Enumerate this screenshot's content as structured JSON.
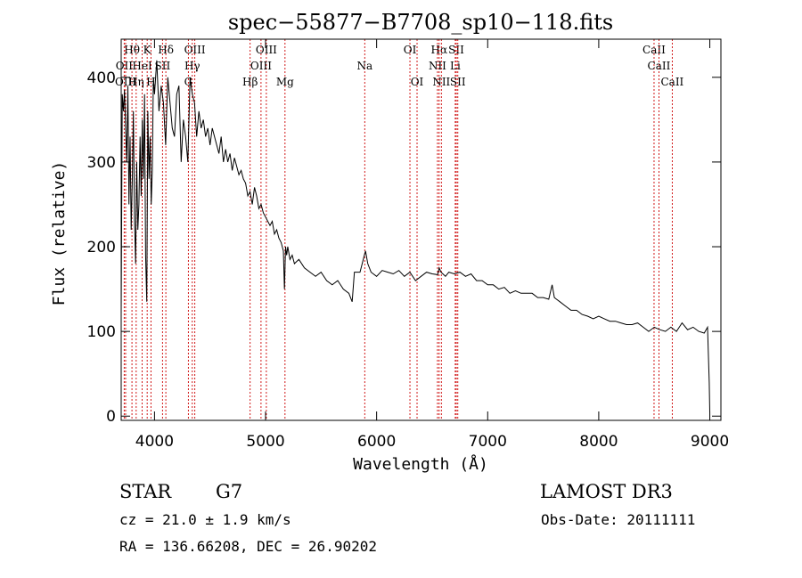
{
  "chart_data": {
    "type": "line",
    "title": "spec−55877−B7708_sp10−118.fits",
    "xlabel": "Wavelength (Å)",
    "ylabel": "Flux (relative)",
    "xlim": [
      3700,
      9100
    ],
    "ylim": [
      -5,
      445
    ],
    "xticks": [
      4000,
      5000,
      6000,
      7000,
      8000,
      9000
    ],
    "yticks": [
      0,
      100,
      200,
      300,
      400
    ],
    "series": [
      {
        "name": "flux",
        "x": [
          3700,
          3710,
          3720,
          3730,
          3740,
          3750,
          3760,
          3770,
          3780,
          3790,
          3800,
          3810,
          3820,
          3830,
          3840,
          3850,
          3860,
          3870,
          3880,
          3890,
          3900,
          3910,
          3920,
          3930,
          3940,
          3950,
          3960,
          3970,
          3980,
          3990,
          4000,
          4020,
          4040,
          4060,
          4080,
          4100,
          4120,
          4140,
          4160,
          4180,
          4200,
          4220,
          4240,
          4260,
          4280,
          4300,
          4320,
          4340,
          4360,
          4380,
          4400,
          4420,
          4440,
          4460,
          4480,
          4500,
          4520,
          4540,
          4560,
          4580,
          4600,
          4620,
          4640,
          4660,
          4680,
          4700,
          4720,
          4740,
          4760,
          4780,
          4800,
          4820,
          4840,
          4860,
          4880,
          4900,
          4920,
          4940,
          4960,
          4980,
          5000,
          5020,
          5040,
          5060,
          5080,
          5100,
          5120,
          5140,
          5160,
          5170,
          5180,
          5190,
          5200,
          5220,
          5240,
          5260,
          5300,
          5350,
          5400,
          5450,
          5500,
          5550,
          5600,
          5650,
          5700,
          5750,
          5780,
          5800,
          5850,
          5890,
          5900,
          5920,
          5950,
          6000,
          6050,
          6100,
          6150,
          6200,
          6250,
          6300,
          6350,
          6400,
          6450,
          6500,
          6550,
          6563,
          6580,
          6620,
          6650,
          6700,
          6750,
          6800,
          6850,
          6900,
          6950,
          7000,
          7050,
          7100,
          7150,
          7200,
          7250,
          7300,
          7350,
          7400,
          7450,
          7500,
          7550,
          7580,
          7600,
          7620,
          7650,
          7700,
          7750,
          7800,
          7850,
          7900,
          7950,
          8000,
          8050,
          8100,
          8150,
          8200,
          8250,
          8300,
          8350,
          8400,
          8450,
          8500,
          8550,
          8600,
          8650,
          8700,
          8750,
          8800,
          8850,
          8900,
          8950,
          8980,
          8995,
          9000
        ],
        "y": [
          120,
          380,
          360,
          385,
          340,
          300,
          390,
          250,
          330,
          220,
          280,
          360,
          230,
          180,
          300,
          220,
          250,
          330,
          260,
          350,
          280,
          380,
          190,
          135,
          360,
          280,
          330,
          250,
          290,
          400,
          380,
          420,
          360,
          390,
          370,
          320,
          400,
          370,
          340,
          330,
          380,
          390,
          300,
          350,
          330,
          300,
          400,
          380,
          370,
          330,
          360,
          340,
          350,
          330,
          340,
          320,
          340,
          330,
          320,
          310,
          330,
          300,
          315,
          300,
          310,
          290,
          305,
          295,
          285,
          290,
          280,
          275,
          260,
          265,
          250,
          270,
          260,
          245,
          250,
          240,
          235,
          230,
          225,
          230,
          215,
          220,
          210,
          205,
          195,
          150,
          200,
          190,
          200,
          185,
          190,
          180,
          185,
          175,
          170,
          165,
          170,
          160,
          155,
          160,
          150,
          145,
          135,
          170,
          170,
          190,
          195,
          180,
          170,
          165,
          172,
          170,
          168,
          172,
          165,
          170,
          160,
          165,
          170,
          168,
          167,
          175,
          170,
          165,
          170,
          168,
          170,
          165,
          168,
          160,
          160,
          155,
          155,
          150,
          152,
          145,
          148,
          145,
          145,
          145,
          140,
          140,
          138,
          155,
          140,
          138,
          135,
          130,
          125,
          125,
          120,
          118,
          115,
          118,
          115,
          112,
          112,
          110,
          108,
          108,
          110,
          105,
          100,
          105,
          102,
          100,
          105,
          100,
          110,
          102,
          105,
          100,
          98,
          105,
          40,
          5
        ]
      }
    ],
    "line_markers": [
      {
        "label": "Hθ",
        "x": 3797,
        "row": 1
      },
      {
        "label": "K",
        "x": 3934,
        "row": 1
      },
      {
        "label": "Hδ",
        "x": 4102,
        "row": 1
      },
      {
        "label": "OIII",
        "x": 4363,
        "row": 1
      },
      {
        "label": "OIII",
        "x": 5007,
        "row": 1
      },
      {
        "label": "OI",
        "x": 6300,
        "row": 1
      },
      {
        "label": "Hα",
        "x": 6563,
        "row": 1
      },
      {
        "label": "SII",
        "x": 6717,
        "row": 1
      },
      {
        "label": "CaII",
        "x": 8498,
        "row": 1
      },
      {
        "label": "OII",
        "x": 3727,
        "row": 2
      },
      {
        "label": "HeI",
        "x": 3889,
        "row": 2
      },
      {
        "label": "SII",
        "x": 4072,
        "row": 2
      },
      {
        "label": "Hγ",
        "x": 4340,
        "row": 2
      },
      {
        "label": "OIII",
        "x": 4959,
        "row": 2
      },
      {
        "label": "Na",
        "x": 5893,
        "row": 2
      },
      {
        "label": "NII",
        "x": 6548,
        "row": 2
      },
      {
        "label": "Li",
        "x": 6708,
        "row": 2
      },
      {
        "label": "CaII",
        "x": 8542,
        "row": 2
      },
      {
        "label": "OIII",
        "x": 3740,
        "row": 3
      },
      {
        "label": "Hη",
        "x": 3835,
        "row": 3
      },
      {
        "label": "H",
        "x": 3968,
        "row": 3
      },
      {
        "label": "G",
        "x": 4305,
        "row": 3
      },
      {
        "label": "Hβ",
        "x": 4861,
        "row": 3
      },
      {
        "label": "Mg",
        "x": 5175,
        "row": 3
      },
      {
        "label": "OI",
        "x": 6364,
        "row": 3
      },
      {
        "label": "NII",
        "x": 6583,
        "row": 3
      },
      {
        "label": "SII",
        "x": 6731,
        "row": 3
      },
      {
        "label": "CaII",
        "x": 8662,
        "row": 3
      }
    ]
  },
  "info": {
    "class": "STAR",
    "subclass": "G7",
    "survey": "LAMOST DR3",
    "cz": "cz = 21.0 ± 1.9 km/s",
    "obs_date": "Obs-Date: 20111111",
    "coords": "RA = 136.66208, DEC =  26.90202"
  }
}
